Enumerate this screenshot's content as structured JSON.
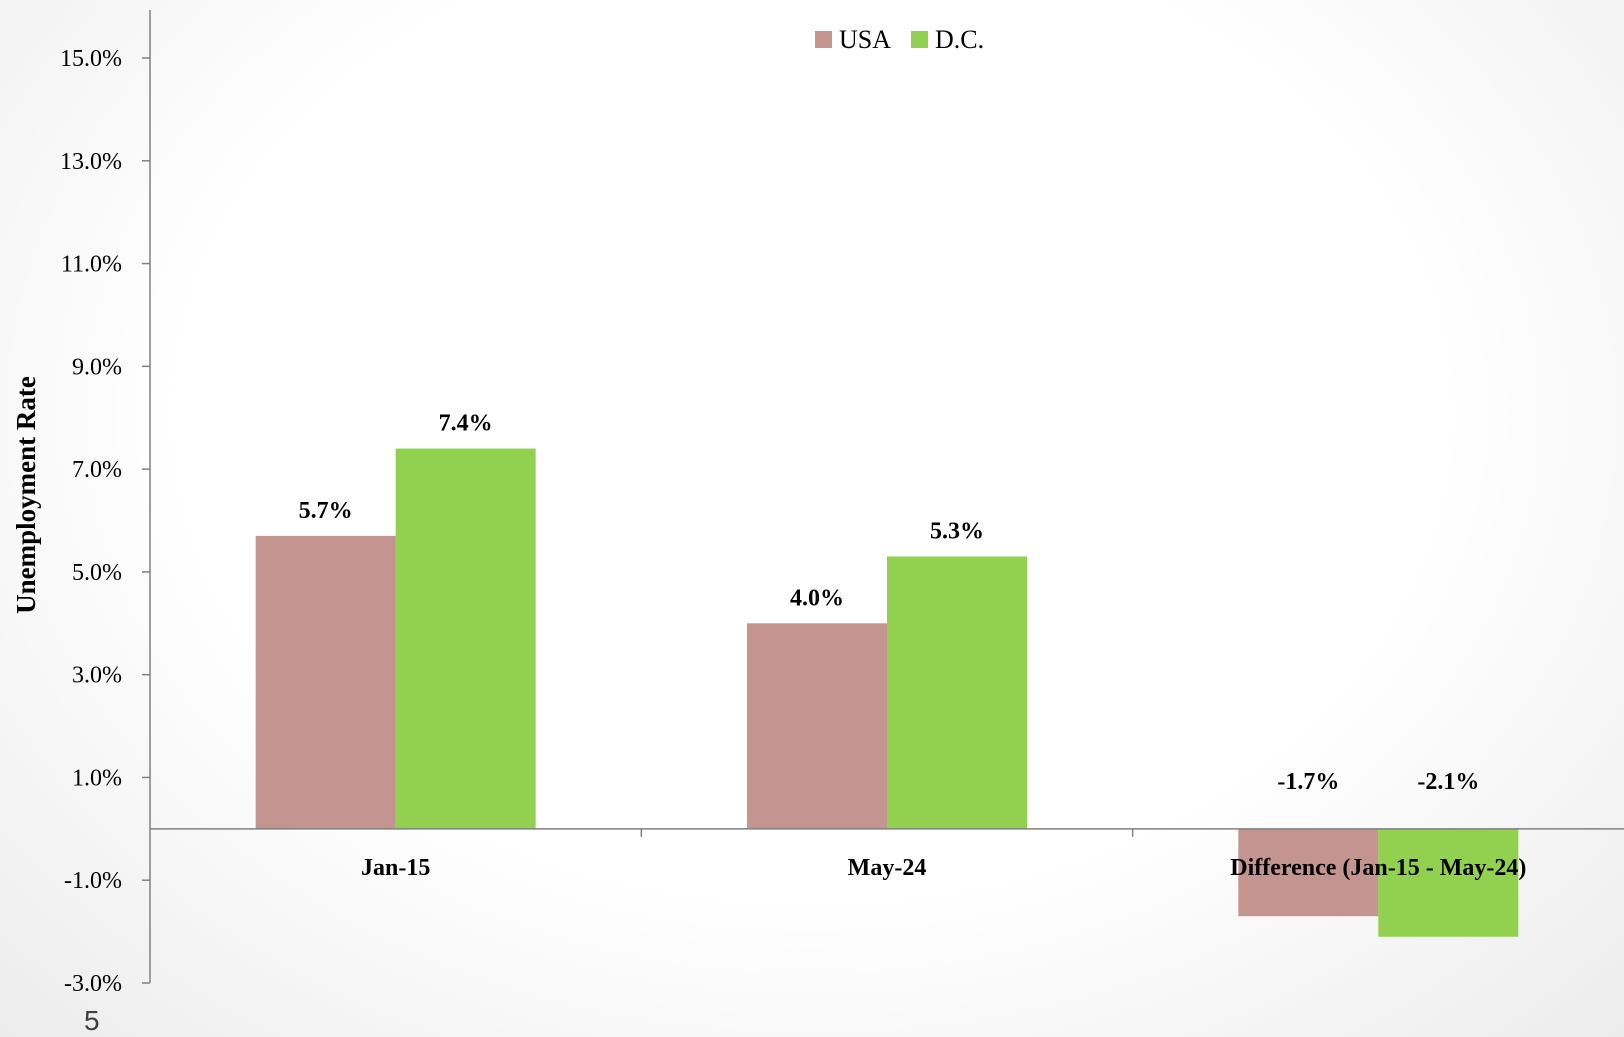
{
  "page": {
    "slide_number": "5"
  },
  "chart_data": {
    "type": "bar",
    "ylabel": "Unemployment Rate",
    "xlabel": "",
    "ylim": [
      -3.0,
      16.0
    ],
    "yticks": [
      -3.0,
      -1.0,
      1.0,
      3.0,
      5.0,
      7.0,
      9.0,
      11.0,
      13.0,
      15.0
    ],
    "ytick_labels": [
      "-3.0%",
      "-1.0%",
      "1.0%",
      "3.0%",
      "5.0%",
      "7.0%",
      "9.0%",
      "11.0%",
      "13.0%",
      "15.0%"
    ],
    "categories": [
      "Jan-15",
      "May-24",
      "Difference (Jan-15 - May-24)"
    ],
    "series": [
      {
        "name": "USA",
        "color": "#c49490",
        "values": [
          5.7,
          4.0,
          -1.7
        ],
        "labels": [
          "5.7%",
          "4.0%",
          "-1.7%"
        ]
      },
      {
        "name": "D.C.",
        "color": "#92d050",
        "values": [
          7.4,
          5.3,
          -2.1
        ],
        "labels": [
          "7.4%",
          "5.3%",
          "-2.1%"
        ]
      }
    ],
    "legend_position": "top-center",
    "grid": false
  }
}
